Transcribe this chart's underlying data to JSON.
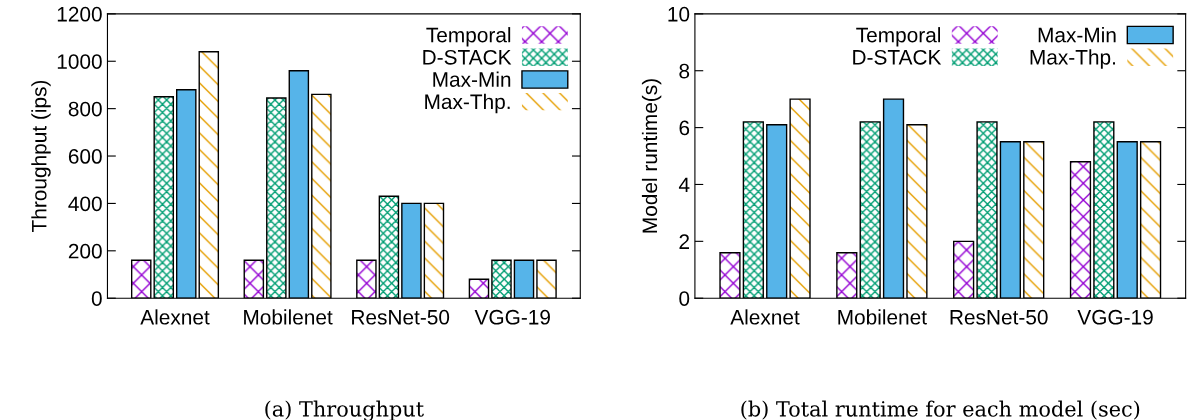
{
  "chart_data": [
    {
      "type": "bar",
      "ylabel": "Throughput (ips)",
      "categories": [
        "Alexnet",
        "Mobilenet",
        "ResNet-50",
        "VGG-19"
      ],
      "ylim": [
        0,
        1200
      ],
      "yticks": [
        0,
        200,
        400,
        600,
        800,
        1000,
        1200
      ],
      "grid": false,
      "legend": "top right",
      "series": [
        {
          "name": "Temporal",
          "color": "#9400d3",
          "values": [
            160,
            160,
            160,
            80
          ]
        },
        {
          "name": "D-STACK",
          "color": "#009e73",
          "values": [
            850,
            845,
            430,
            160
          ]
        },
        {
          "name": "Max-Min",
          "color": "#56b4e9",
          "values": [
            880,
            960,
            400,
            160
          ]
        },
        {
          "name": "Max-Thp.",
          "color": "#e69f00",
          "values": [
            1040,
            860,
            400,
            160
          ]
        }
      ],
      "annotations": [
        "(a) Throughput"
      ]
    },
    {
      "type": "bar",
      "ylabel": "Model runtime(s)",
      "categories": [
        "Alexnet",
        "Mobilenet",
        "ResNet-50",
        "VGG-19"
      ],
      "ylim": [
        0,
        10
      ],
      "yticks": [
        0,
        2,
        4,
        6,
        8,
        10
      ],
      "grid": false,
      "legend": "top right",
      "series": [
        {
          "name": "Temporal",
          "color": "#9400d3",
          "values": [
            1.6,
            1.6,
            2.0,
            4.8
          ]
        },
        {
          "name": "D-STACK",
          "color": "#009e73",
          "values": [
            6.2,
            6.2,
            6.2,
            6.2
          ]
        },
        {
          "name": "Max-Min",
          "color": "#56b4e9",
          "values": [
            6.1,
            7.0,
            5.5,
            5.5
          ]
        },
        {
          "name": "Max-Thp.",
          "color": "#e69f00",
          "values": [
            7.0,
            6.1,
            5.5,
            5.5
          ]
        }
      ],
      "annotations": [
        "(b) Total runtime for each model (sec)"
      ]
    }
  ]
}
